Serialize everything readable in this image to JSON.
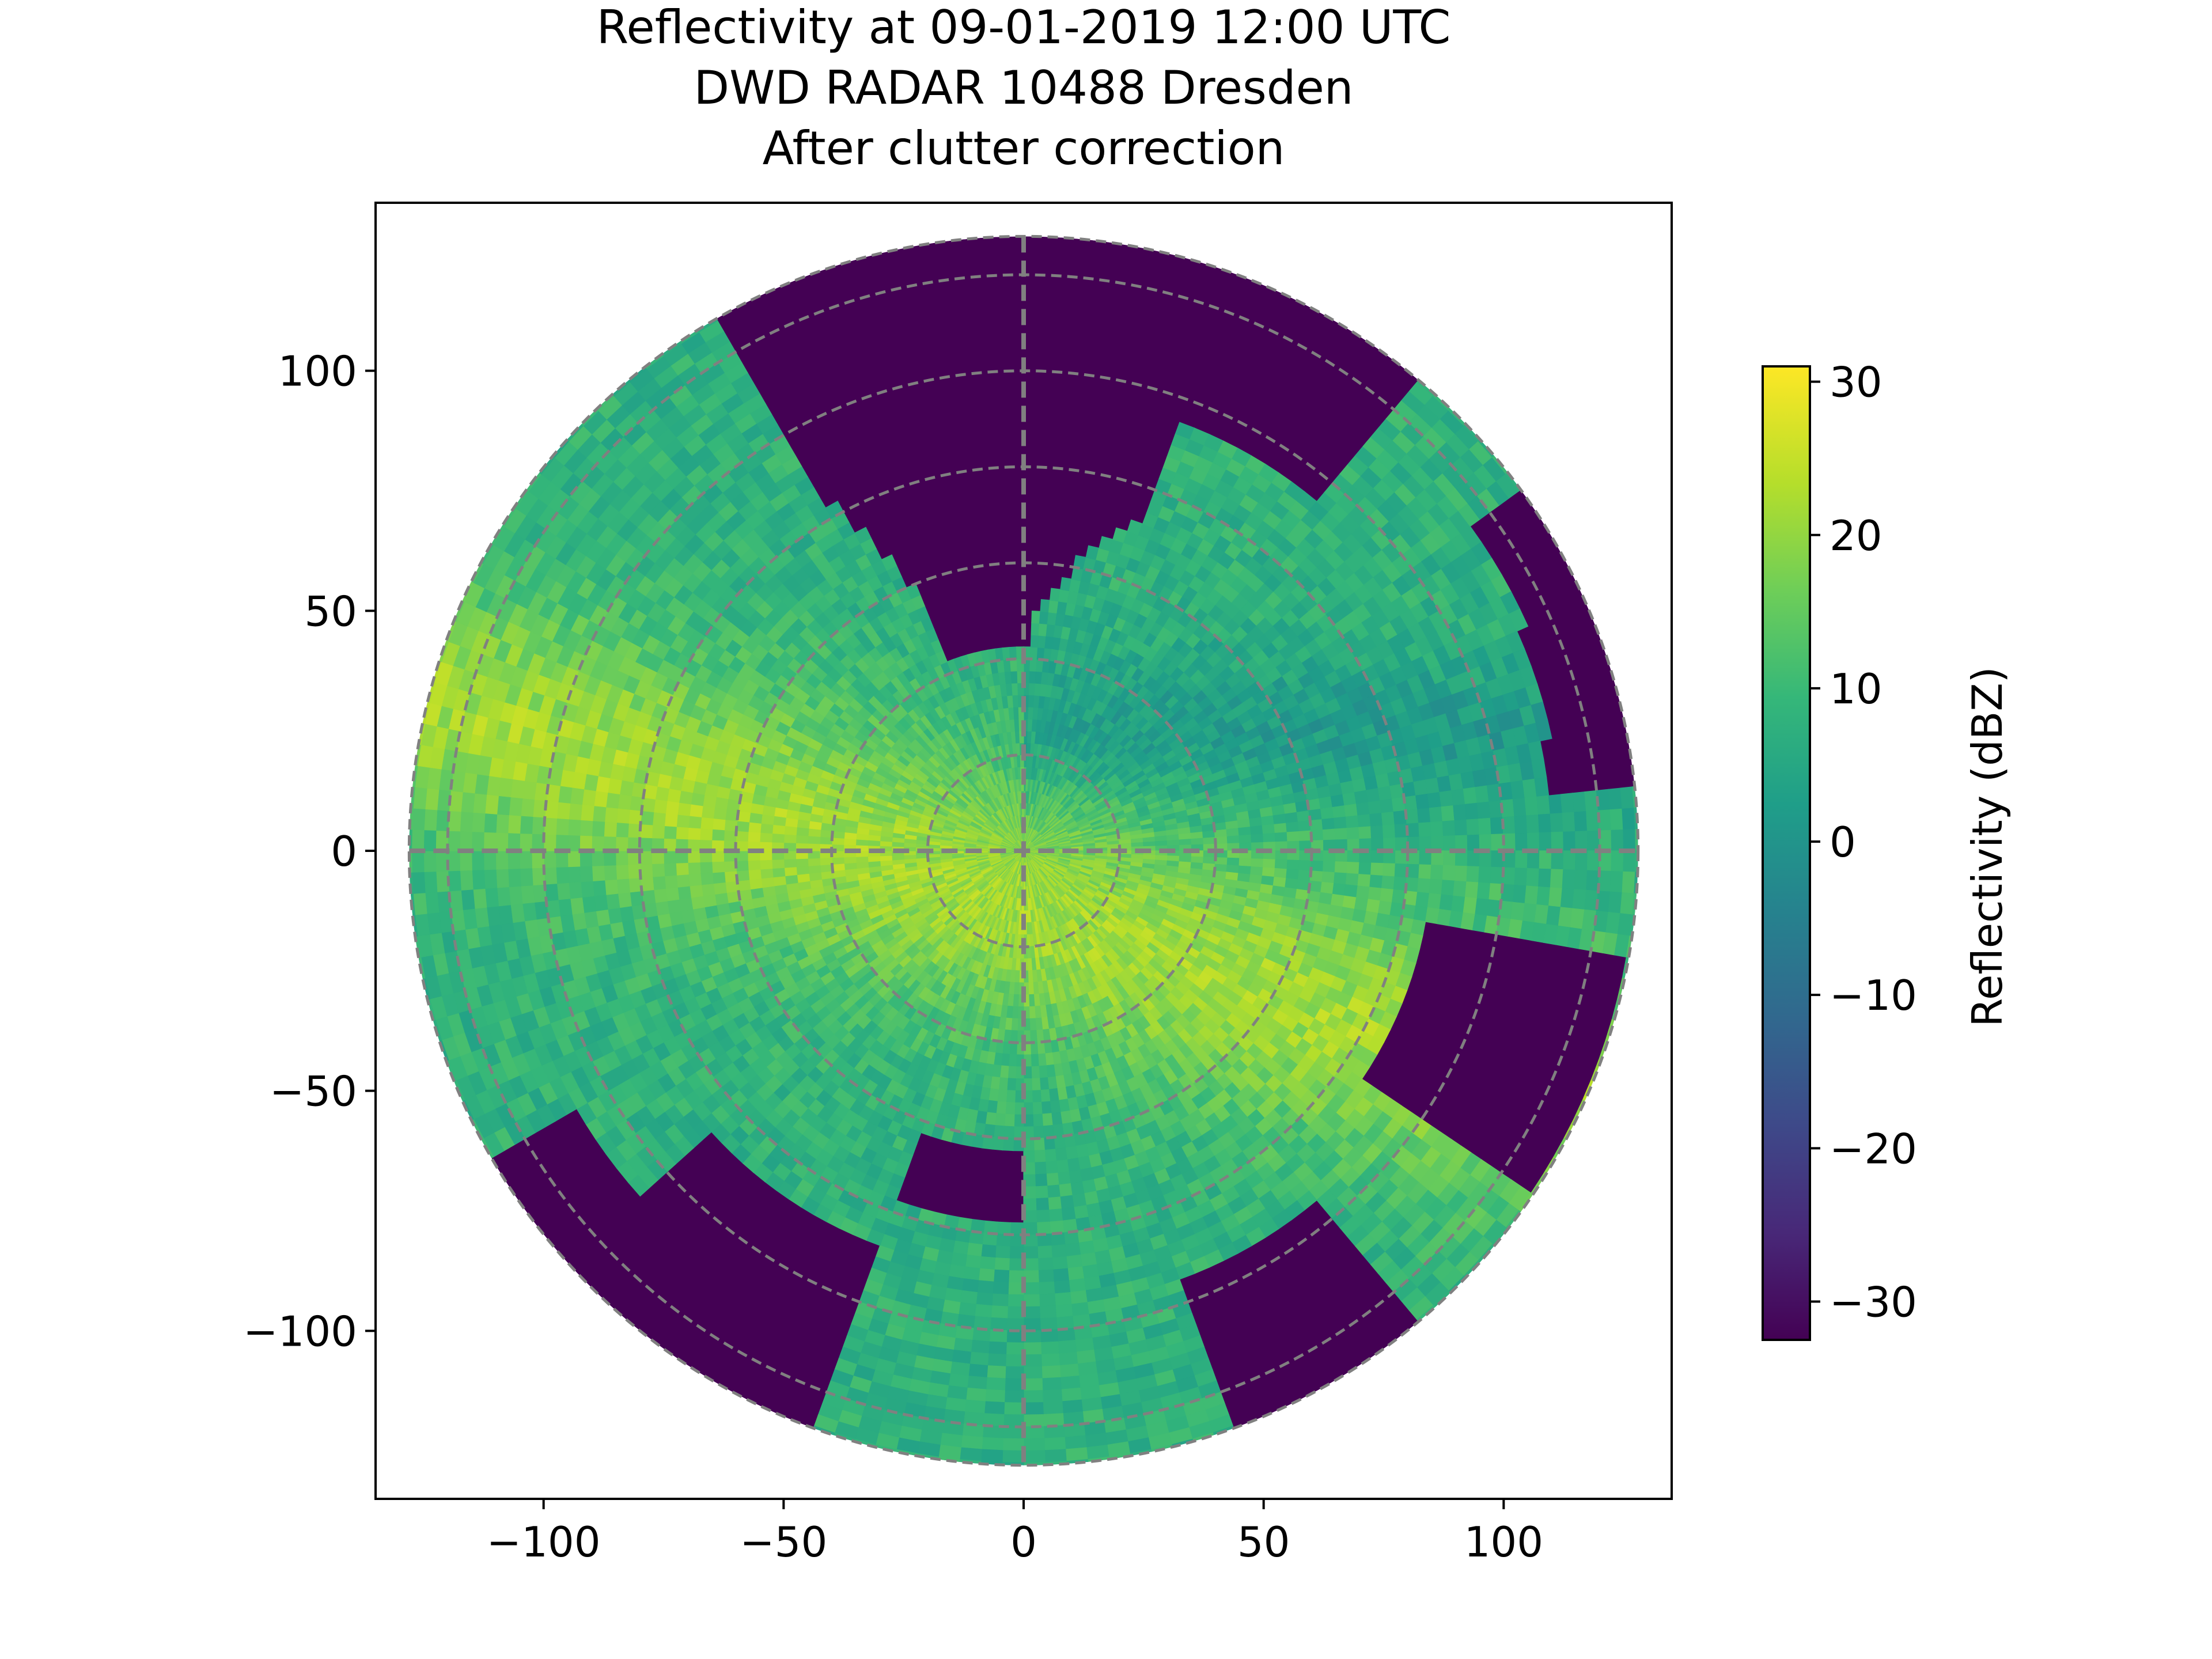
{
  "chart_data": {
    "type": "heatmap",
    "title_lines": [
      "Reflectivity at 09-01-2019 12:00 UTC",
      "DWD RADAR 10488 Dresden",
      "After clutter correction"
    ],
    "xlabel": "",
    "ylabel": "",
    "xlim": [
      -135,
      135
    ],
    "ylim": [
      -135,
      135
    ],
    "x_ticks": [
      -100,
      -50,
      0,
      50,
      100
    ],
    "y_ticks": [
      -100,
      -50,
      0,
      50,
      100
    ],
    "x_tick_labels": [
      "−100",
      "−50",
      "0",
      "50",
      "100"
    ],
    "y_tick_labels": [
      "−100",
      "−50",
      "0",
      "50",
      "100"
    ],
    "range_rings": [
      20,
      40,
      60,
      80,
      100,
      120,
      128
    ],
    "max_range": 128,
    "colorbar": {
      "label": "Reflectivity (dBZ)",
      "range": [
        -32.5,
        31
      ],
      "ticks": [
        30,
        20,
        10,
        0,
        -10,
        -20,
        -30
      ],
      "tick_labels": [
        "30",
        "20",
        "10",
        "0",
        "−10",
        "−20",
        "−30"
      ],
      "colormap": "viridis"
    },
    "grid": true,
    "colormap_colors": [
      "#440154",
      "#482878",
      "#3e4989",
      "#31688e",
      "#26828e",
      "#1f9e89",
      "#35b779",
      "#6ece58",
      "#b5de2b",
      "#fde725"
    ]
  }
}
